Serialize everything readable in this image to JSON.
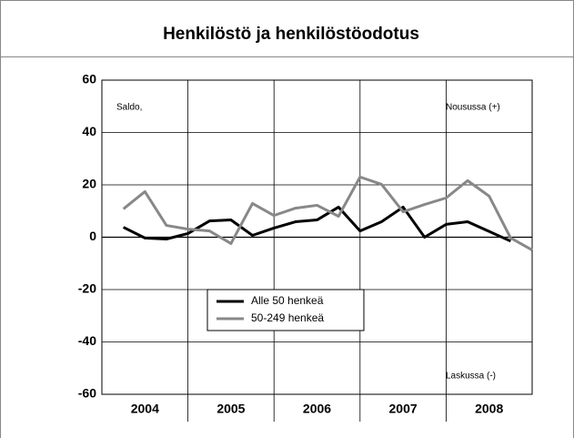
{
  "chart_data": {
    "type": "line",
    "title": "Henkilöstö ja henkilöstöodotus",
    "annotations": [
      "Saldo,",
      "Nousussa (+)",
      "Laskussa (-)"
    ],
    "x": [
      2004.25,
      2004.5,
      2004.75,
      2005.0,
      2005.25,
      2005.5,
      2005.75,
      2006.0,
      2006.25,
      2006.5,
      2006.75,
      2007.0,
      2007.25,
      2007.5,
      2007.75,
      2008.0,
      2008.25,
      2008.5,
      2008.75,
      2009.0
    ],
    "xlim": [
      2004,
      2009
    ],
    "xticks": [
      {
        "value": 2004.5,
        "label": "2004"
      },
      {
        "value": 2005.5,
        "label": "2005"
      },
      {
        "value": 2006.5,
        "label": "2006"
      },
      {
        "value": 2007.5,
        "label": "2007"
      },
      {
        "value": 2008.5,
        "label": "2008"
      }
    ],
    "ylim": [
      -60,
      60
    ],
    "yticks": [
      -60,
      -40,
      -20,
      0,
      20,
      40,
      60
    ],
    "grid": true,
    "series": [
      {
        "name": "Alle 50 henkeä",
        "color": "#000000",
        "values": [
          3.8,
          -0.3,
          -0.7,
          1.4,
          6.2,
          6.6,
          0.7,
          3.5,
          5.9,
          6.6,
          11.5,
          2.4,
          5.9,
          11.5,
          0,
          4.9,
          5.9,
          2.2,
          -1.5,
          null
        ]
      },
      {
        "name": "50-249 henkeä",
        "color": "#888888",
        "values": [
          10.8,
          17.4,
          4.5,
          3.1,
          2.4,
          -2.4,
          12.9,
          8.3,
          11.1,
          12.2,
          8,
          23,
          20.2,
          9.7,
          12.5,
          15,
          21.6,
          15.7,
          -0.3,
          -4.9
        ]
      }
    ]
  }
}
